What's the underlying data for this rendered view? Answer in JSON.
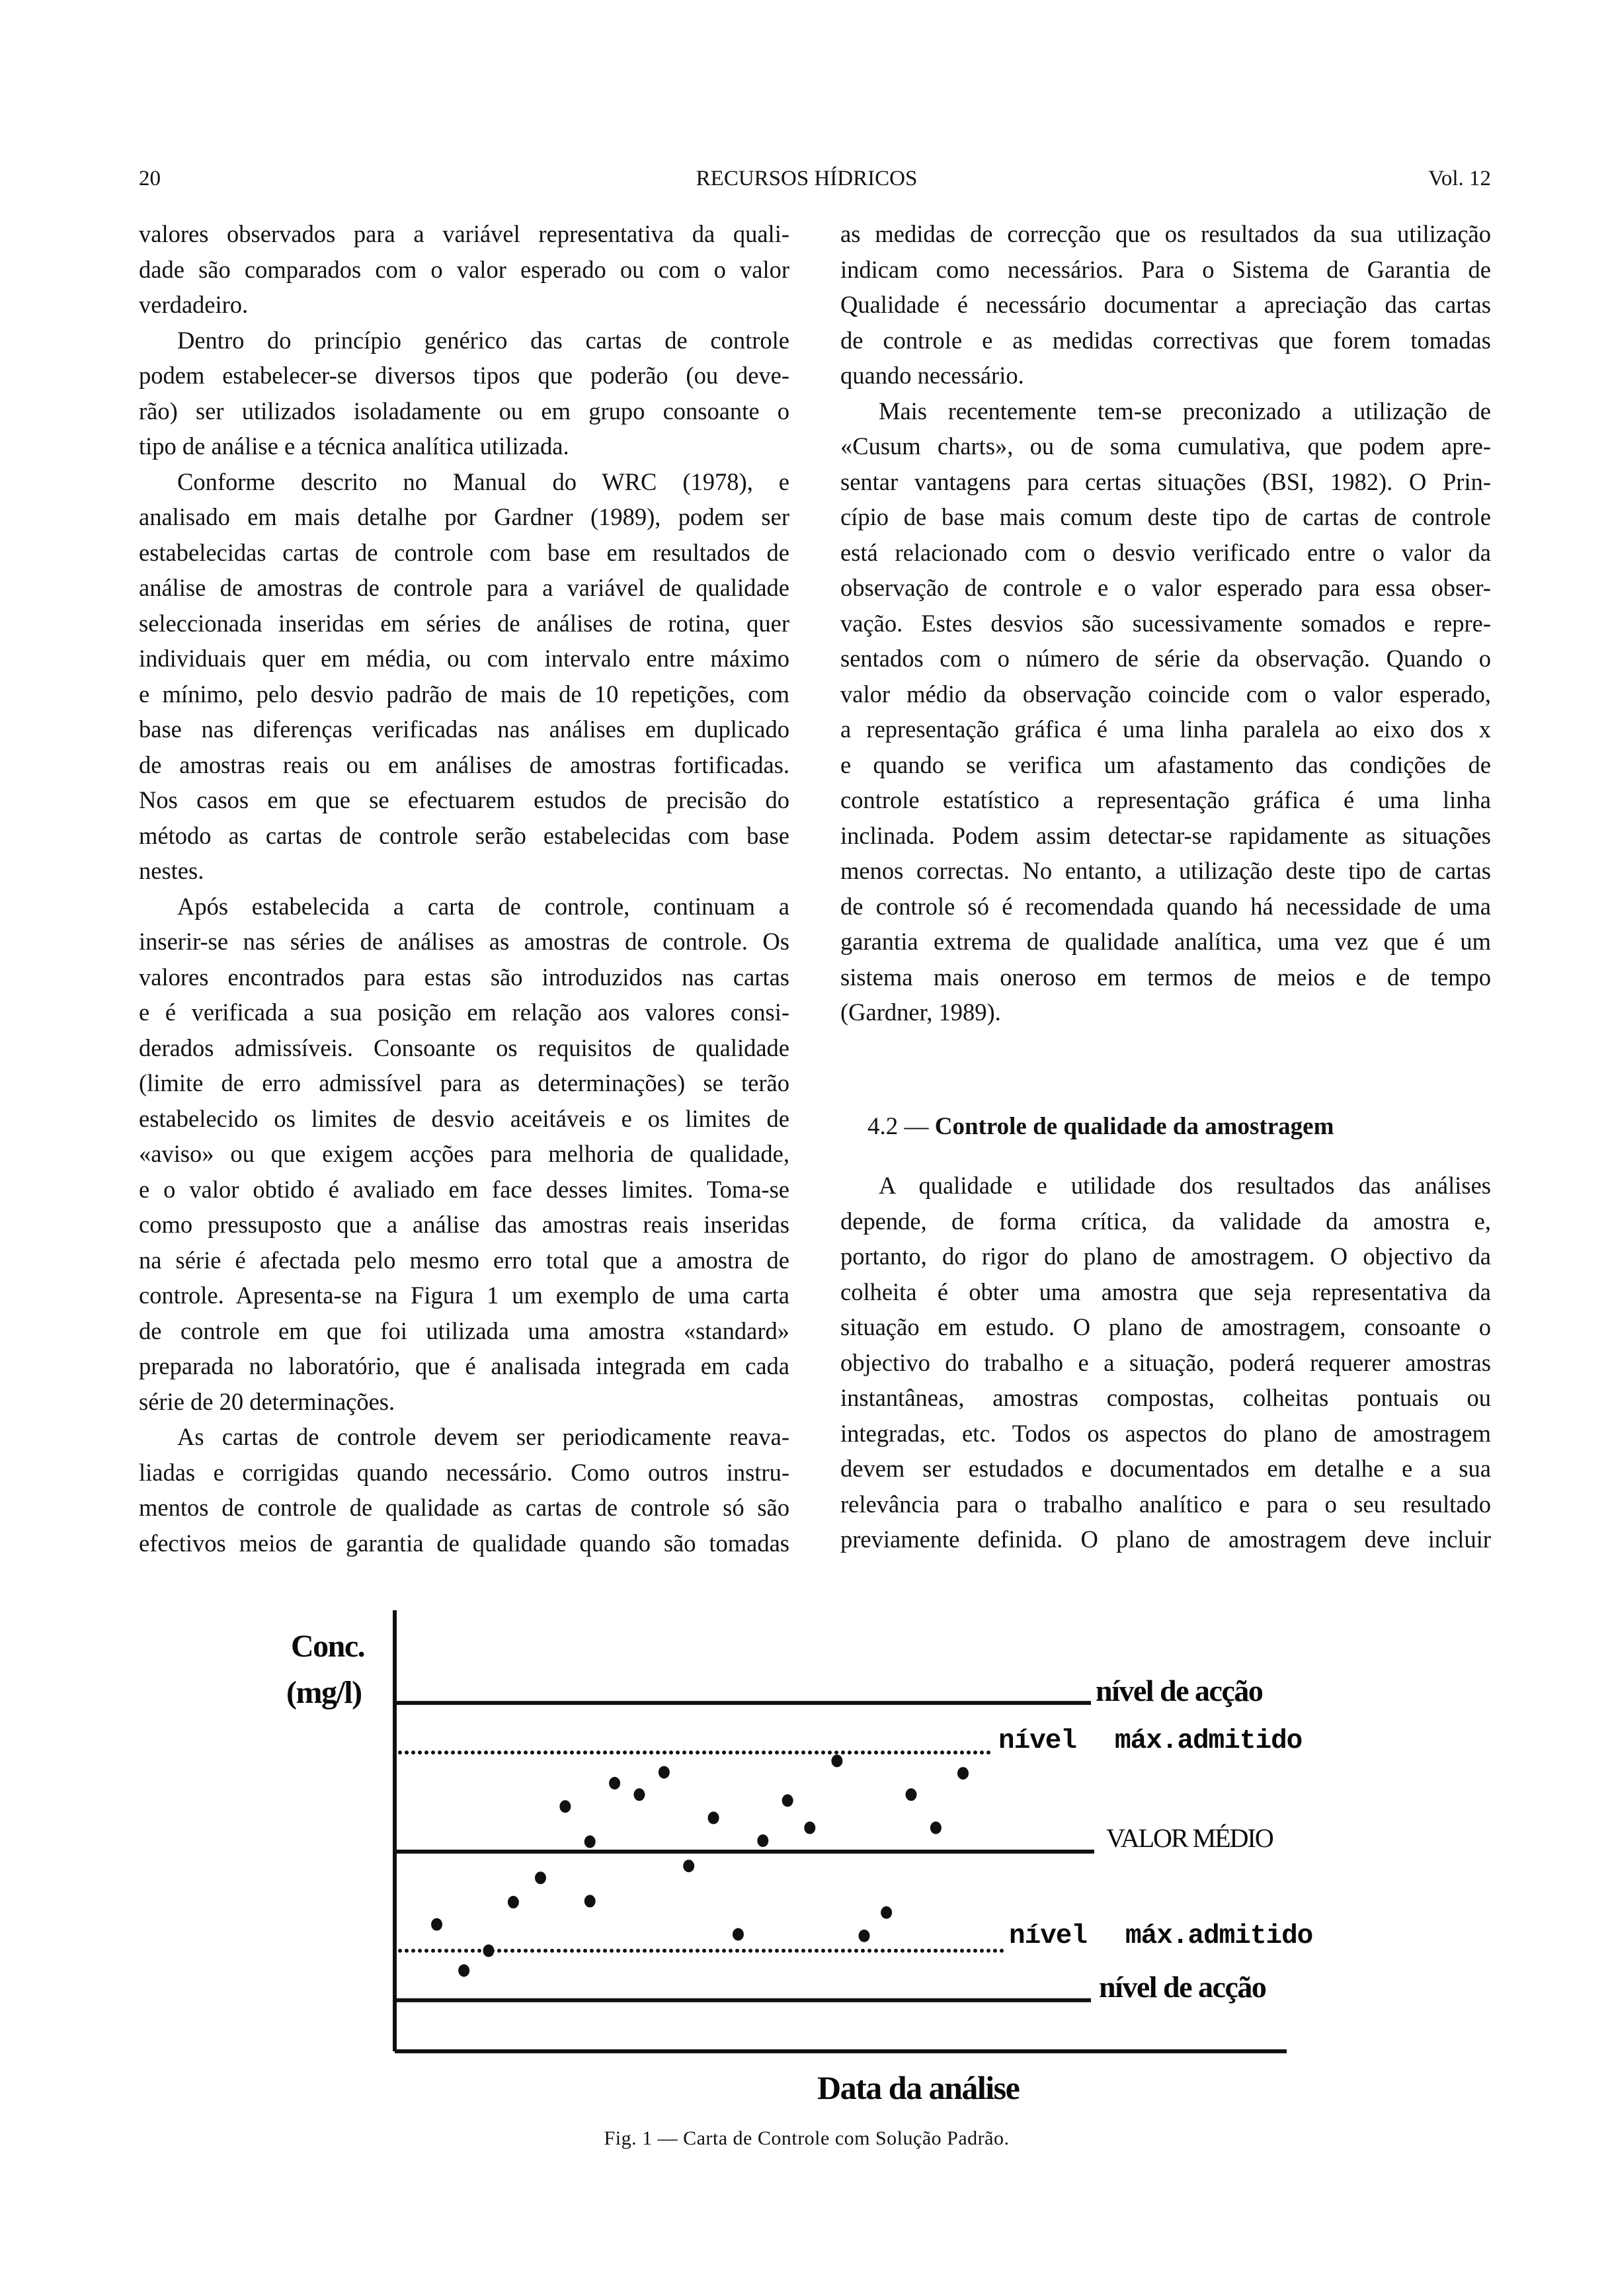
{
  "header": {
    "page_number": "20",
    "journal": "RECURSOS HÍDRICOS",
    "volume": "Vol. 12"
  },
  "left_column": [
    {
      "lines": [
        "valores observados para a variável representativa da quali-",
        "dade são comparados com o valor esperado ou com o valor",
        "verdadeiro."
      ],
      "indent_first": false
    },
    {
      "lines": [
        "Dentro do princípio genérico das cartas de controle",
        "podem estabelecer-se diversos tipos que poderão (ou deve-",
        "rão) ser utilizados isoladamente ou em grupo consoante o",
        "tipo de análise e a técnica analítica utilizada."
      ],
      "indent_first": true
    },
    {
      "lines": [
        "Conforme descrito no Manual do WRC (1978), e",
        "analisado em mais detalhe por Gardner (1989), podem ser",
        "estabelecidas cartas de controle com base em resultados de",
        "análise de amostras de controle para a variável de qualidade",
        "seleccionada inseridas em séries de análises de rotina, quer",
        "individuais quer em média, ou com intervalo entre máximo",
        "e mínimo, pelo desvio padrão de mais de 10 repetições, com",
        "base nas diferenças verificadas nas análises em duplicado",
        "de amostras reais ou em análises de amostras fortificadas.",
        "Nos casos em que se efectuarem estudos de precisão do",
        "método as cartas de controle serão estabelecidas com base",
        "nestes."
      ],
      "indent_first": true
    },
    {
      "lines": [
        "Após estabelecida a carta de controle, continuam a",
        "inserir-se nas séries de análises as amostras de controle. Os",
        "valores encontrados para estas são introduzidos nas cartas",
        "e é verificada a sua posição em relação aos valores consi-",
        "derados admissíveis. Consoante os requisitos de qualidade",
        "(limite de erro admissível para as determinações) se terão",
        "estabelecido os limites de desvio aceitáveis e os limites de",
        "«aviso» ou que exigem acções para melhoria de qualidade,",
        "e o valor obtido é avaliado em face desses limites. Toma-se",
        "como pressuposto que a análise das amostras reais inseridas",
        "na série é afectada pelo mesmo erro total que a amostra de",
        "controle. Apresenta-se na Figura 1 um exemplo de uma carta",
        "de controle em que foi utilizada uma amostra «standard»",
        "preparada no laboratório, que é analisada integrada em cada",
        "série de 20 determinações."
      ],
      "indent_first": true
    },
    {
      "lines": [
        "As cartas de controle devem ser periodicamente reava-",
        "liadas e corrigidas quando necessário. Como outros instru-",
        "mentos de controle de qualidade as cartas de controle só são",
        "efectivos meios de garantia de qualidade quando são tomadas"
      ],
      "indent_first": true,
      "continues": true
    }
  ],
  "right_column": [
    {
      "lines": [
        "as medidas de correcção que os resultados da sua utilização",
        "indicam como necessários. Para o Sistema de Garantia de",
        "Qualidade é necessário documentar a apreciação das cartas",
        "de controle e as medidas correctivas que forem tomadas",
        "quando necessário."
      ],
      "indent_first": false
    },
    {
      "lines": [
        "Mais recentemente tem-se preconizado a utilização de",
        "«Cusum charts», ou de soma cumulativa, que podem apre-",
        "sentar vantagens para certas situações (BSI, 1982). O Prin-",
        "cípio de base mais comum deste tipo de cartas de controle",
        "está relacionado com o desvio verificado entre o valor da",
        "observação de controle e o valor esperado para essa obser-",
        "vação. Estes desvios são sucessivamente somados e repre-",
        "sentados com o número de série da observação. Quando o",
        "valor médio da observação coincide com o valor esperado,",
        "a representação gráfica é uma linha paralela ao eixo dos x",
        "e quando se verifica um afastamento das condições de",
        "controle estatístico a representação gráfica é uma linha",
        "inclinada. Podem assim detectar-se rapidamente as situações",
        "menos correctas. No entanto, a utilização deste tipo de cartas",
        "de controle só é recomendada quando há necessidade de uma",
        "garantia extrema de qualidade analítica, uma vez que é um",
        "sistema mais oneroso em termos de meios e de tempo",
        "(Gardner, 1989)."
      ],
      "indent_first": true
    }
  ],
  "section": {
    "number": "4.2 —",
    "title": "Controle de qualidade da amostragem"
  },
  "right_column_after": [
    {
      "lines": [
        "A qualidade e utilidade dos resultados das análises",
        "depende, de forma crítica, da validade da amostra e,",
        "portanto, do rigor do plano de amostragem. O objectivo da",
        "colheita é obter uma amostra que seja representativa da",
        "situação em estudo. O plano de amostragem, consoante o",
        "objectivo do trabalho e a situação, poderá requerer amostras",
        "instantâneas, amostras compostas, colheitas pontuais ou",
        "integradas, etc. Todos os aspectos do plano de amostragem",
        "devem ser estudados e documentados em detalhe e a sua",
        "relevância para o trabalho analítico e para o seu resultado",
        "previamente definida. O plano de amostragem deve incluir"
      ],
      "indent_first": true,
      "continues": true
    }
  ],
  "chart_data": {
    "type": "scatter",
    "title": "",
    "ylabel_line1": "Conc.",
    "ylabel_line2": "(mg/l)",
    "xlabel": "Data da análise",
    "grid": false,
    "xlim": [
      0,
      36.1
    ],
    "ylim": [
      -4.03,
      4.87
    ],
    "x": [
      1.7,
      2.8,
      3.8,
      4.8,
      5.9,
      6.9,
      7.9,
      7.9,
      8.9,
      9.9,
      10.9,
      11.9,
      12.9,
      13.9,
      14.9,
      15.9,
      16.8,
      17.9,
      19.0,
      19.9,
      20.9,
      21.9,
      23.0
    ],
    "y": [
      -1.47,
      -2.4,
      -2.0,
      -1.02,
      -0.53,
      0.91,
      0.2,
      -1.0,
      1.38,
      1.15,
      1.6,
      -0.29,
      0.68,
      -1.67,
      0.22,
      1.03,
      0.48,
      1.83,
      -1.7,
      -1.23,
      1.15,
      0.48,
      1.58
    ],
    "reference_lines": [
      {
        "label": "nível de acção",
        "value": 3,
        "style": "solid"
      },
      {
        "label_a": "nível",
        "label_b": "máx.admitido",
        "value": 2,
        "style": "dotted"
      },
      {
        "label": "VALOR MÉDIO",
        "value": 0,
        "style": "solid"
      },
      {
        "label_a": "nível",
        "label_b": "máx.admitido",
        "value": -2,
        "style": "dotted"
      },
      {
        "label": "nível de acção",
        "value": -3,
        "style": "solid"
      }
    ],
    "color": "#111111"
  },
  "caption": "Fig. 1 — Carta de Controle com Solução Padrão."
}
